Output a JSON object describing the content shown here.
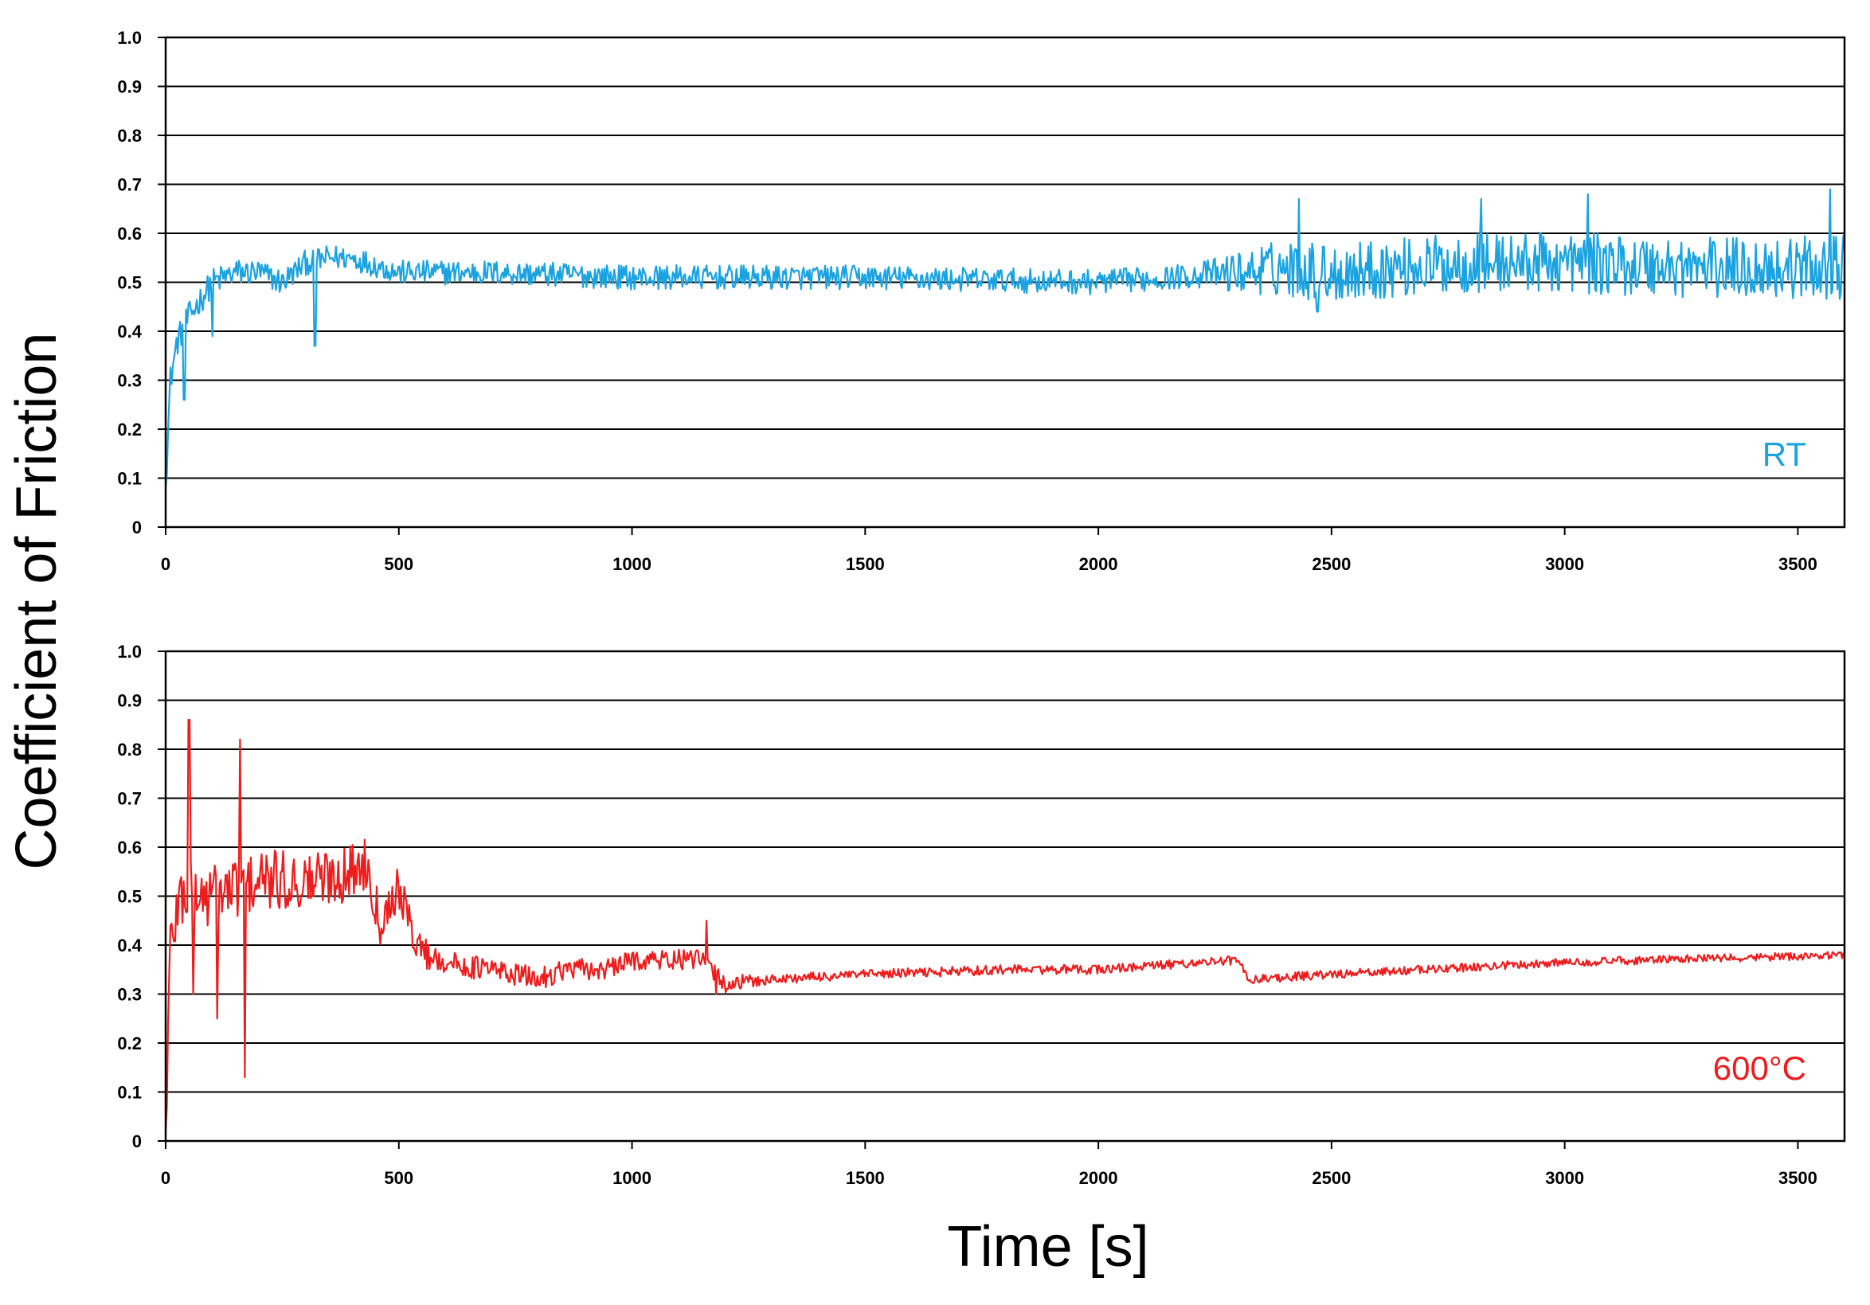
{
  "figure": {
    "ylabel": "Coefficient of Friction",
    "xlabel": "Time [s]"
  },
  "chart_data": [
    {
      "type": "line",
      "title": "",
      "series_label": "RT",
      "color": "#1aa3e0",
      "xlim": [
        0,
        3600
      ],
      "ylim": [
        0,
        1.0
      ],
      "x_ticks": [
        0,
        500,
        1000,
        1500,
        2000,
        2500,
        3000,
        3500
      ],
      "y_ticks": [
        "0",
        "0.1",
        "0.2",
        "0.3",
        "0.4",
        "0.5",
        "0.6",
        "0.7",
        "0.8",
        "0.9",
        "1.0"
      ],
      "grid": true,
      "label_position": "bottom-right",
      "anchors": {
        "x": [
          0,
          10,
          25,
          50,
          100,
          150,
          200,
          250,
          300,
          350,
          400,
          500,
          700,
          1000,
          1500,
          2000,
          2300,
          2400,
          2500,
          2800,
          3000,
          3300,
          3600
        ],
        "y": [
          0.08,
          0.3,
          0.38,
          0.43,
          0.5,
          0.52,
          0.52,
          0.5,
          0.54,
          0.55,
          0.55,
          0.52,
          0.52,
          0.51,
          0.51,
          0.5,
          0.52,
          0.53,
          0.52,
          0.54,
          0.54,
          0.53,
          0.53
        ]
      },
      "noise": {
        "x": [
          0,
          400,
          2200,
          2400,
          3600
        ],
        "amplitude": [
          0.03,
          0.025,
          0.025,
          0.06,
          0.065
        ]
      },
      "spikes": [
        {
          "x": 40,
          "y": 0.26
        },
        {
          "x": 100,
          "y": 0.39
        },
        {
          "x": 320,
          "y": 0.37
        },
        {
          "x": 2430,
          "y": 0.67
        },
        {
          "x": 2470,
          "y": 0.44
        },
        {
          "x": 2820,
          "y": 0.67
        },
        {
          "x": 3050,
          "y": 0.68
        },
        {
          "x": 3570,
          "y": 0.69
        }
      ]
    },
    {
      "type": "line",
      "title": "",
      "series_label": "600°C",
      "color": "#ee1c1c",
      "xlim": [
        0,
        3600
      ],
      "ylim": [
        0,
        1.0
      ],
      "x_ticks": [
        0,
        500,
        1000,
        1500,
        2000,
        2500,
        3000,
        3500
      ],
      "y_ticks": [
        "0",
        "0.1",
        "0.2",
        "0.3",
        "0.4",
        "0.5",
        "0.6",
        "0.7",
        "0.8",
        "0.9",
        "1.0"
      ],
      "grid": true,
      "label_position": "bottom-right",
      "anchors": {
        "x": [
          0,
          10,
          30,
          100,
          200,
          300,
          400,
          430,
          460,
          500,
          530,
          560,
          620,
          700,
          800,
          850,
          950,
          1000,
          1150,
          1200,
          1300,
          1500,
          1800,
          2000,
          2300,
          2320,
          2500,
          2800,
          3000,
          3600
        ],
        "y": [
          0.02,
          0.4,
          0.5,
          0.5,
          0.53,
          0.53,
          0.55,
          0.57,
          0.45,
          0.52,
          0.42,
          0.38,
          0.36,
          0.35,
          0.33,
          0.35,
          0.35,
          0.37,
          0.37,
          0.32,
          0.33,
          0.34,
          0.35,
          0.35,
          0.37,
          0.33,
          0.34,
          0.355,
          0.365,
          0.38
        ]
      },
      "noise": {
        "x": [
          0,
          400,
          600,
          1200,
          1300,
          3600
        ],
        "amplitude": [
          0.07,
          0.06,
          0.025,
          0.02,
          0.01,
          0.008
        ]
      },
      "spikes": [
        {
          "x": 50,
          "y": 0.86
        },
        {
          "x": 60,
          "y": 0.3
        },
        {
          "x": 110,
          "y": 0.25
        },
        {
          "x": 160,
          "y": 0.82
        },
        {
          "x": 170,
          "y": 0.13
        },
        {
          "x": 1160,
          "y": 0.45
        },
        {
          "x": 1180,
          "y": 0.3
        }
      ]
    }
  ]
}
